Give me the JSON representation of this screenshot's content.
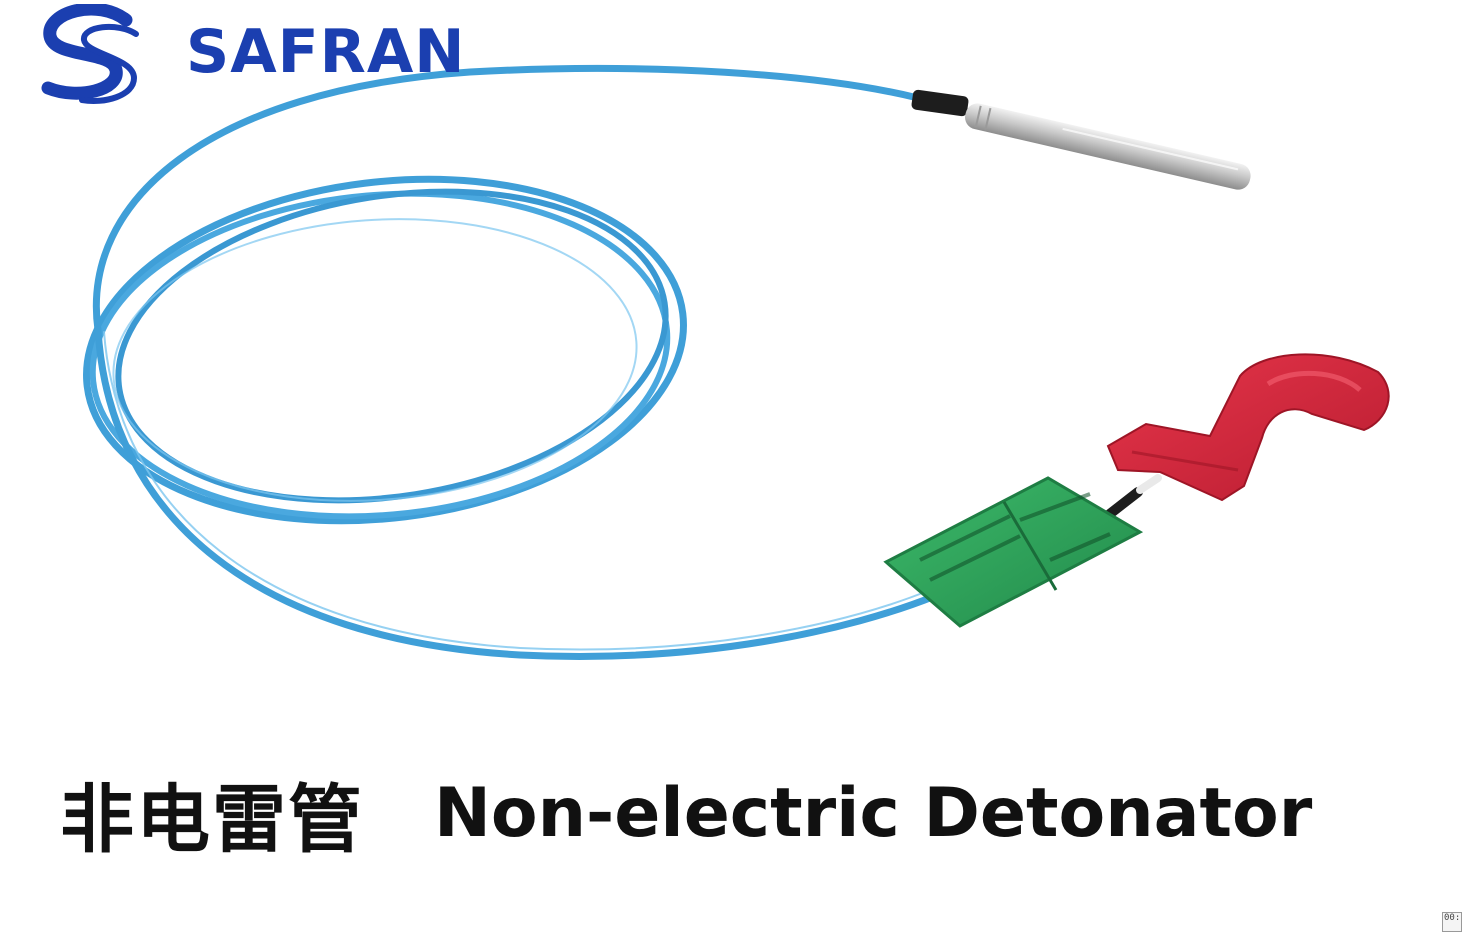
{
  "logo": {
    "brand_text": "SAFRAN",
    "brand_color": "#1b3fb0",
    "icon": "safran-swoosh-icon"
  },
  "caption": {
    "chinese": "非电雷管",
    "english": "Non-electric Detonator"
  },
  "colors": {
    "tube": "#3f9fd8",
    "tube_highlight": "#7cc6ef",
    "metal_shell": "#c9c9c9",
    "sleeve": "#1d1d1d",
    "tag": "#2fa35a",
    "clip": "#d8283c",
    "background": "#ffffff"
  },
  "corner_widget": {
    "text": "00:"
  }
}
